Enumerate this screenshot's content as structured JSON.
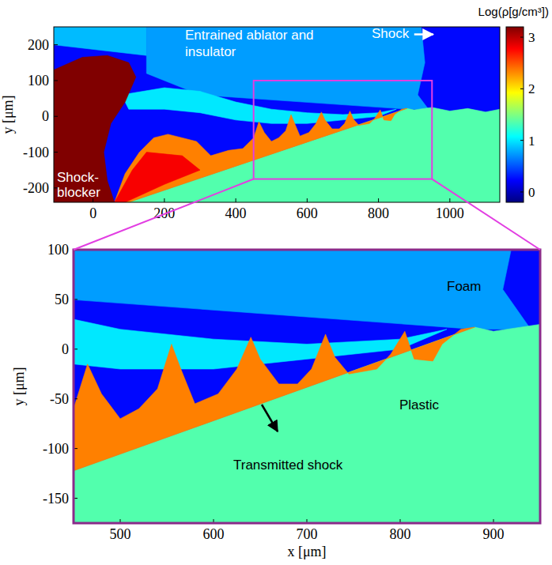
{
  "chart_data": [
    {
      "type": "heatmap",
      "y_label": "y [μm]",
      "xlim": [
        -110,
        1140
      ],
      "ylim": [
        -240,
        250
      ],
      "xticks": [
        0,
        200,
        400,
        600,
        800,
        1000
      ],
      "yticks": [
        -200,
        -100,
        0,
        100,
        200
      ],
      "colorbar": {
        "label": "Log(ρ[g/cm³])",
        "range": [
          -0.2,
          3.2
        ],
        "ticks": [
          0,
          1,
          2,
          3
        ]
      },
      "annotations": [
        "Entrained ablator and insulator",
        "Shock",
        "Shock-blocker"
      ],
      "regions": [
        {
          "value": 0.25,
          "points": [
            [
              -110,
              -240
            ],
            [
              1140,
              -240
            ],
            [
              1140,
              250
            ],
            [
              -110,
              250
            ]
          ]
        },
        {
          "value": 0.85,
          "points": [
            [
              -110,
              250
            ],
            [
              150,
              250
            ],
            [
              150,
              170
            ],
            [
              -110,
              200
            ]
          ]
        },
        {
          "value": 0.75,
          "points": [
            [
              150,
              250
            ],
            [
              920,
              250
            ],
            [
              930,
              150
            ],
            [
              910,
              60
            ],
            [
              940,
              20
            ],
            [
              880,
              20
            ],
            [
              300,
              60
            ],
            [
              150,
              120
            ]
          ]
        },
        {
          "value": 1.0,
          "points": [
            [
              80,
              60
            ],
            [
              200,
              80
            ],
            [
              300,
              70
            ],
            [
              400,
              40
            ],
            [
              500,
              20
            ],
            [
              600,
              10
            ],
            [
              700,
              5
            ],
            [
              800,
              10
            ],
            [
              850,
              20
            ],
            [
              800,
              0
            ],
            [
              700,
              -10
            ],
            [
              600,
              -20
            ],
            [
              500,
              -20
            ],
            [
              400,
              -10
            ],
            [
              300,
              10
            ],
            [
              200,
              20
            ],
            [
              100,
              20
            ]
          ]
        },
        {
          "value": 1.35,
          "points": [
            [
              100,
              -240
            ],
            [
              880,
              22
            ],
            [
              900,
              18
            ],
            [
              950,
              25
            ],
            [
              1000,
              15
            ],
            [
              1050,
              22
            ],
            [
              1100,
              12
            ],
            [
              1140,
              20
            ],
            [
              1140,
              -240
            ]
          ]
        },
        {
          "value": 2.35,
          "points": [
            [
              60,
              -240
            ],
            [
              100,
              -240
            ],
            [
              880,
              22
            ],
            [
              865,
              20
            ],
            [
              845,
              5
            ],
            [
              835,
              -12
            ],
            [
              815,
              -10
            ],
            [
              805,
              18
            ],
            [
              790,
              -5
            ],
            [
              775,
              -20
            ],
            [
              745,
              -25
            ],
            [
              730,
              -8
            ],
            [
              720,
              15
            ],
            [
              705,
              -20
            ],
            [
              690,
              -35
            ],
            [
              670,
              -35
            ],
            [
              650,
              -10
            ],
            [
              640,
              12
            ],
            [
              625,
              -20
            ],
            [
              605,
              -45
            ],
            [
              580,
              -55
            ],
            [
              565,
              -20
            ],
            [
              555,
              5
            ],
            [
              540,
              -40
            ],
            [
              520,
              -60
            ],
            [
              500,
              -70
            ],
            [
              480,
              -45
            ],
            [
              465,
              -15
            ],
            [
              450,
              -60
            ],
            [
              420,
              -90
            ],
            [
              380,
              -95
            ],
            [
              330,
              -110
            ],
            [
              290,
              -70
            ],
            [
              250,
              -60
            ],
            [
              210,
              -50
            ],
            [
              170,
              -60
            ],
            [
              130,
              -100
            ],
            [
              90,
              -160
            ]
          ]
        },
        {
          "value": 2.8,
          "points": [
            [
              60,
              -240
            ],
            [
              90,
              -240
            ],
            [
              200,
              -190
            ],
            [
              300,
              -150
            ],
            [
              250,
              -110
            ],
            [
              150,
              -100
            ],
            [
              110,
              -150
            ]
          ]
        },
        {
          "value": 3.2,
          "points": [
            [
              -110,
              -240
            ],
            [
              60,
              -240
            ],
            [
              40,
              -180
            ],
            [
              30,
              -100
            ],
            [
              50,
              -20
            ],
            [
              90,
              40
            ],
            [
              120,
              110
            ],
            [
              100,
              150
            ],
            [
              40,
              170
            ],
            [
              -30,
              165
            ],
            [
              -110,
              130
            ]
          ]
        }
      ]
    },
    {
      "type": "heatmap",
      "x_label": "x [μm]",
      "y_label": "y [μm]",
      "xlim": [
        450,
        950
      ],
      "ylim": [
        -175,
        100
      ],
      "xticks": [
        500,
        600,
        700,
        800,
        900
      ],
      "yticks": [
        -150,
        -100,
        -50,
        0,
        50,
        100
      ],
      "annotations": [
        "Foam",
        "Plastic",
        "Transmitted shock"
      ]
    }
  ]
}
